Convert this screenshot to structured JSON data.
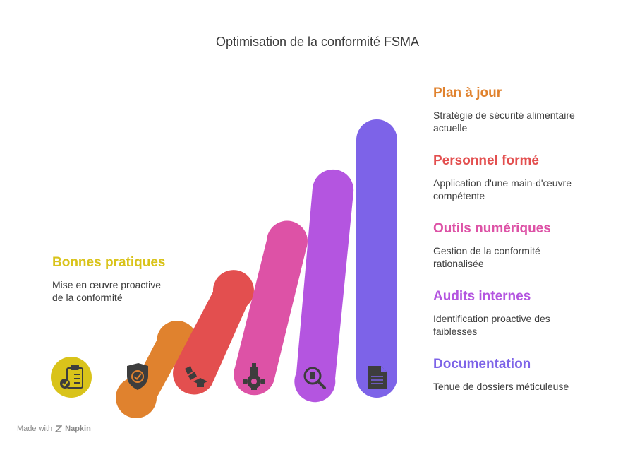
{
  "title": "Optimisation de la conformité FSMA",
  "steps": [
    {
      "heading": "Bonnes pratiques",
      "description_lines": [
        "Mise en œuvre proactive",
        "de la conformité"
      ],
      "color": "#D9C31A",
      "icon": "clipboard-check-icon"
    },
    {
      "heading": "Documentation",
      "description_lines": [
        "Tenue de dossiers méticuleuse"
      ],
      "color": "#7D63E8",
      "icon": "document-icon"
    },
    {
      "heading": "Audits internes",
      "description_lines": [
        "Identification proactive des",
        "faiblesses"
      ],
      "color": "#B455E0",
      "icon": "magnifier-icon"
    },
    {
      "heading": "Outils numériques",
      "description_lines": [
        "Gestion de la conformité",
        "rationalisée"
      ],
      "color": "#DD52A6",
      "icon": "gear-tower-icon"
    },
    {
      "heading": "Personnel formé",
      "description_lines": [
        "Application d'une main-d'œuvre",
        "compétente"
      ],
      "color": "#E34F4F",
      "icon": "graduation-icon"
    },
    {
      "heading": "Plan à jour",
      "description_lines": [
        "Stratégie de sécurité alimentaire",
        "actuelle"
      ],
      "color": "#E0822E",
      "icon": "shield-check-icon"
    }
  ],
  "footer": {
    "made_with": "Made with",
    "brand": "Napkin"
  }
}
